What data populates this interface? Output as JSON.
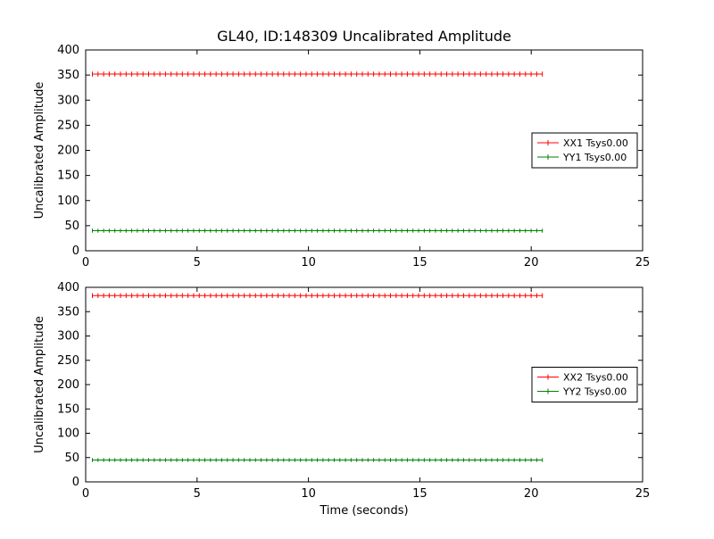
{
  "title": "GL40, ID:148309 Uncalibrated Amplitude",
  "colors": {
    "red": "#ff0000",
    "green": "#008000",
    "axis": "#000000",
    "background": "#ffffff"
  },
  "chart_data": [
    {
      "type": "line",
      "subplot": "top",
      "title": "",
      "xlabel": "",
      "ylabel": "Uncalibrated Amplitude",
      "xlim": [
        0,
        25
      ],
      "ylim": [
        0,
        400
      ],
      "x_ticks": [
        0,
        5,
        10,
        15,
        20,
        25
      ],
      "y_ticks": [
        0,
        50,
        100,
        150,
        200,
        250,
        300,
        350,
        400
      ],
      "grid": false,
      "legend_position": "center-right",
      "series": [
        {
          "name": "XX1 Tsys0.00",
          "color": "#ff0000",
          "style": "errorbar-line",
          "x_start": 0.3,
          "x_end": 20.5,
          "n_points": 81,
          "y_constant": 352,
          "y_error": 5
        },
        {
          "name": "YY1 Tsys0.00",
          "color": "#008000",
          "style": "errorbar-line",
          "x_start": 0.3,
          "x_end": 20.5,
          "n_points": 81,
          "y_constant": 40,
          "y_error": 4
        }
      ],
      "legend": [
        "XX1 Tsys0.00",
        "YY1 Tsys0.00"
      ]
    },
    {
      "type": "line",
      "subplot": "bottom",
      "title": "",
      "xlabel": "Time (seconds)",
      "ylabel": "Uncalibrated Amplitude",
      "xlim": [
        0,
        25
      ],
      "ylim": [
        0,
        400
      ],
      "x_ticks": [
        0,
        5,
        10,
        15,
        20,
        25
      ],
      "y_ticks": [
        0,
        50,
        100,
        150,
        200,
        250,
        300,
        350,
        400
      ],
      "grid": false,
      "legend_position": "center-right",
      "series": [
        {
          "name": "XX2 Tsys0.00",
          "color": "#ff0000",
          "style": "errorbar-line",
          "x_start": 0.3,
          "x_end": 20.5,
          "n_points": 81,
          "y_constant": 383,
          "y_error": 5
        },
        {
          "name": "YY2 Tsys0.00",
          "color": "#008000",
          "style": "errorbar-line",
          "x_start": 0.3,
          "x_end": 20.5,
          "n_points": 81,
          "y_constant": 45,
          "y_error": 4
        }
      ],
      "legend": [
        "XX2 Tsys0.00",
        "YY2 Tsys0.00"
      ]
    }
  ]
}
